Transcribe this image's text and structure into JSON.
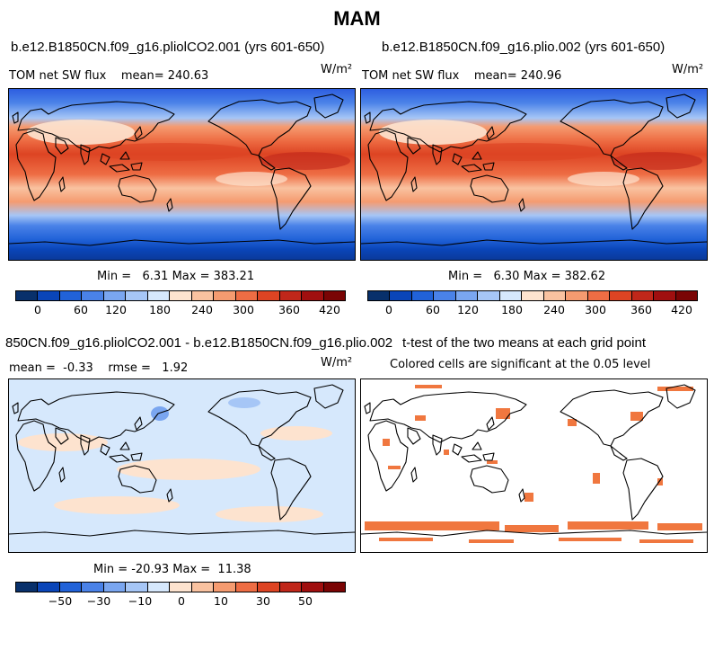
{
  "title": "MAM",
  "panels": [
    {
      "id": "top-left",
      "title": "b.e12.B1850CN.f09_g16.pliolCO2.001 (yrs 601-650)",
      "left_text": "TOM net SW flux    mean= 240.63",
      "units": "W/m²",
      "minmax": "Min =   6.31 Max = 383.21"
    },
    {
      "id": "top-right",
      "title": "b.e12.B1850CN.f09_g16.plio.002 (yrs 601-650)",
      "left_text": "TOM net SW flux    mean= 240.96",
      "units": "W/m²",
      "minmax": "Min =   6.30 Max = 382.62"
    },
    {
      "id": "bottom-left",
      "title": "850CN.f09_g16.pliolCO2.001 - b.e12.B1850CN.f09_g16.plio.002",
      "left_text": "mean =  -0.33    rmse =   1.92",
      "units": "W/m²",
      "minmax": "Min = -20.93 Max =  11.38"
    },
    {
      "id": "bottom-right",
      "title": "t-test of the two means at each grid point",
      "subtitle": "Colored cells are significant at the 0.05 level"
    }
  ],
  "colorbar_abs": {
    "colors": [
      "#08306b",
      "#0a45b8",
      "#2162d8",
      "#4a82e8",
      "#7aa6f0",
      "#a6c6f6",
      "#d6e8fc",
      "#fde3cf",
      "#f9c2a0",
      "#f59b70",
      "#ee6d44",
      "#dd4423",
      "#c0271a",
      "#a00f0f",
      "#7a0404"
    ],
    "labels": [
      "0",
      "60",
      "120",
      "180",
      "240",
      "300",
      "360",
      "420"
    ]
  },
  "colorbar_diff": {
    "colors": [
      "#08306b",
      "#0a45b8",
      "#2162d8",
      "#4a82e8",
      "#7aa6f0",
      "#a6c6f6",
      "#d6e8fc",
      "#fde3cf",
      "#f9c2a0",
      "#f59b70",
      "#ee6d44",
      "#dd4423",
      "#c0271a",
      "#a00f0f",
      "#7a0404"
    ],
    "labels": [
      "−50",
      "−30",
      "−10",
      "0",
      "10",
      "30",
      "50"
    ]
  }
}
